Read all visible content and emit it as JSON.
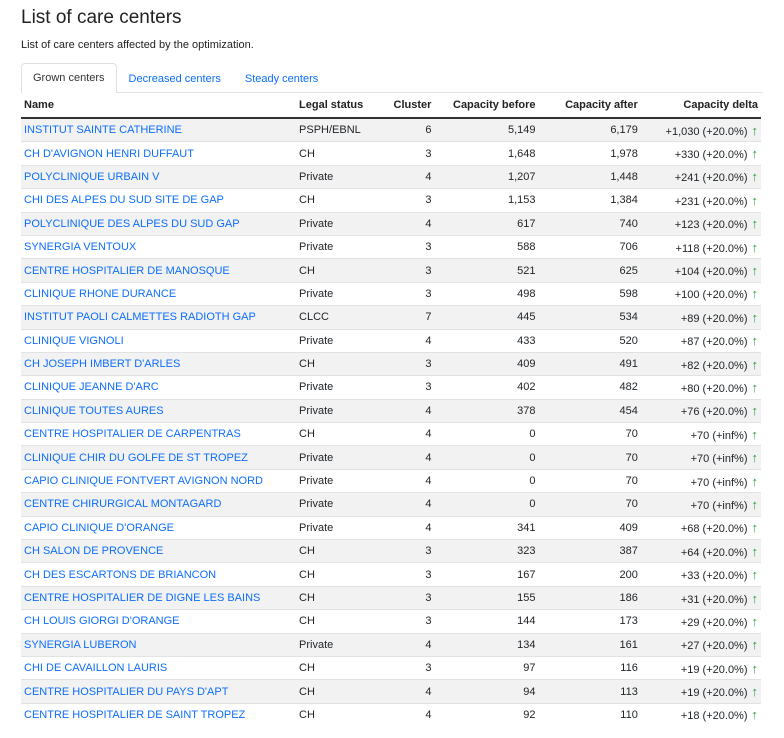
{
  "page": {
    "title": "List of care centers",
    "subtitle": "List of care centers affected by the optimization."
  },
  "tabs": [
    {
      "label": "Grown centers",
      "active": true
    },
    {
      "label": "Decreased centers",
      "active": false
    },
    {
      "label": "Steady centers",
      "active": false
    }
  ],
  "table": {
    "headers": [
      "Name",
      "Legal status",
      "Cluster",
      "Capacity before",
      "Capacity after",
      "Capacity delta"
    ],
    "rows": [
      {
        "name": "INSTITUT SAINTE CATHERINE",
        "status": "PSPH/EBNL",
        "cluster": "6",
        "before": "5,149",
        "after": "6,179",
        "delta": "+1,030 (+20.0%)"
      },
      {
        "name": "CH D'AVIGNON HENRI DUFFAUT",
        "status": "CH",
        "cluster": "3",
        "before": "1,648",
        "after": "1,978",
        "delta": "+330 (+20.0%)"
      },
      {
        "name": "POLYCLINIQUE URBAIN V",
        "status": "Private",
        "cluster": "4",
        "before": "1,207",
        "after": "1,448",
        "delta": "+241 (+20.0%)"
      },
      {
        "name": "CHI DES ALPES DU SUD SITE DE GAP",
        "status": "CH",
        "cluster": "3",
        "before": "1,153",
        "after": "1,384",
        "delta": "+231 (+20.0%)"
      },
      {
        "name": "POLYCLINIQUE DES ALPES DU SUD GAP",
        "status": "Private",
        "cluster": "4",
        "before": "617",
        "after": "740",
        "delta": "+123 (+20.0%)"
      },
      {
        "name": "SYNERGIA VENTOUX",
        "status": "Private",
        "cluster": "3",
        "before": "588",
        "after": "706",
        "delta": "+118 (+20.0%)"
      },
      {
        "name": "CENTRE HOSPITALIER DE MANOSQUE",
        "status": "CH",
        "cluster": "3",
        "before": "521",
        "after": "625",
        "delta": "+104 (+20.0%)"
      },
      {
        "name": "CLINIQUE RHONE DURANCE",
        "status": "Private",
        "cluster": "3",
        "before": "498",
        "after": "598",
        "delta": "+100 (+20.0%)"
      },
      {
        "name": "INSTITUT PAOLI CALMETTES RADIOTH GAP",
        "status": "CLCC",
        "cluster": "7",
        "before": "445",
        "after": "534",
        "delta": "+89 (+20.0%)"
      },
      {
        "name": "CLINIQUE VIGNOLI",
        "status": "Private",
        "cluster": "4",
        "before": "433",
        "after": "520",
        "delta": "+87 (+20.0%)"
      },
      {
        "name": "CH JOSEPH IMBERT D'ARLES",
        "status": "CH",
        "cluster": "3",
        "before": "409",
        "after": "491",
        "delta": "+82 (+20.0%)"
      },
      {
        "name": "CLINIQUE JEANNE D'ARC",
        "status": "Private",
        "cluster": "3",
        "before": "402",
        "after": "482",
        "delta": "+80 (+20.0%)"
      },
      {
        "name": "CLINIQUE TOUTES AURES",
        "status": "Private",
        "cluster": "4",
        "before": "378",
        "after": "454",
        "delta": "+76 (+20.0%)"
      },
      {
        "name": "CENTRE HOSPITALIER DE CARPENTRAS",
        "status": "CH",
        "cluster": "4",
        "before": "0",
        "after": "70",
        "delta": "+70 (+inf%)"
      },
      {
        "name": "CLINIQUE CHIR DU GOLFE DE ST TROPEZ",
        "status": "Private",
        "cluster": "4",
        "before": "0",
        "after": "70",
        "delta": "+70 (+inf%)"
      },
      {
        "name": "CAPIO CLINIQUE FONTVERT AVIGNON NORD",
        "status": "Private",
        "cluster": "4",
        "before": "0",
        "after": "70",
        "delta": "+70 (+inf%)"
      },
      {
        "name": "CENTRE CHIRURGICAL MONTAGARD",
        "status": "Private",
        "cluster": "4",
        "before": "0",
        "after": "70",
        "delta": "+70 (+inf%)"
      },
      {
        "name": "CAPIO CLINIQUE D'ORANGE",
        "status": "Private",
        "cluster": "4",
        "before": "341",
        "after": "409",
        "delta": "+68 (+20.0%)"
      },
      {
        "name": "CH SALON DE PROVENCE",
        "status": "CH",
        "cluster": "3",
        "before": "323",
        "after": "387",
        "delta": "+64 (+20.0%)"
      },
      {
        "name": "CH DES ESCARTONS DE BRIANCON",
        "status": "CH",
        "cluster": "3",
        "before": "167",
        "after": "200",
        "delta": "+33 (+20.0%)"
      },
      {
        "name": "CENTRE HOSPITALIER DE DIGNE LES BAINS",
        "status": "CH",
        "cluster": "3",
        "before": "155",
        "after": "186",
        "delta": "+31 (+20.0%)"
      },
      {
        "name": "CH LOUIS GIORGI D'ORANGE",
        "status": "CH",
        "cluster": "3",
        "before": "144",
        "after": "173",
        "delta": "+29 (+20.0%)"
      },
      {
        "name": "SYNERGIA LUBERON",
        "status": "Private",
        "cluster": "4",
        "before": "134",
        "after": "161",
        "delta": "+27 (+20.0%)"
      },
      {
        "name": "CHI DE CAVAILLON LAURIS",
        "status": "CH",
        "cluster": "3",
        "before": "97",
        "after": "116",
        "delta": "+19 (+20.0%)"
      },
      {
        "name": "CENTRE HOSPITALIER DU PAYS D'APT",
        "status": "CH",
        "cluster": "4",
        "before": "94",
        "after": "113",
        "delta": "+19 (+20.0%)"
      },
      {
        "name": "CENTRE HOSPITALIER DE SAINT TROPEZ",
        "status": "CH",
        "cluster": "4",
        "before": "92",
        "after": "110",
        "delta": "+18 (+20.0%)"
      }
    ]
  },
  "icons": {
    "delta_icon": "arrow-up-icon"
  },
  "colors": {
    "link": "#0d6efd",
    "up_arrow": "#2a9d3b",
    "stripe": "#f2f2f2"
  }
}
